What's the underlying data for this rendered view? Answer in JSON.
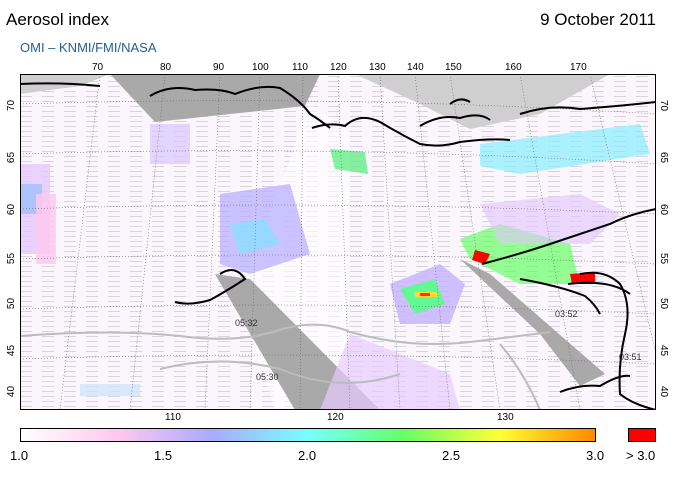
{
  "header": {
    "title": "Aerosol index",
    "date": "9 October 2011",
    "source": "OMI  –  KNMI/FMI/NASA"
  },
  "map": {
    "top_lon_labels": [
      "70",
      "80",
      "90",
      "100",
      "110",
      "120",
      "130",
      "140",
      "150",
      "160",
      "170"
    ],
    "bottom_lon_labels": [
      "110",
      "120",
      "130"
    ],
    "left_lat_labels": [
      "70",
      "65",
      "60",
      "55",
      "50",
      "45",
      "40"
    ],
    "right_lat_labels": [
      "70",
      "65",
      "60",
      "55",
      "50",
      "45",
      "40"
    ],
    "overpass_times": [
      "05:32",
      "05:30",
      "03:52",
      "03:51"
    ],
    "colors": {
      "land": "#ffffff",
      "no_data": "#aaaaaa",
      "coast": "#000000",
      "border": "#bbbbbb",
      "grid": "#555555",
      "high_ai": "#ff0000"
    }
  },
  "colorbar": {
    "labels": [
      "1.0",
      "1.5",
      "2.0",
      "2.5",
      "3.0"
    ],
    "over_label": "> 3.0",
    "stops": [
      "#ffffff",
      "#ffc8f0",
      "#aaaaff",
      "#77ffff",
      "#66ff66",
      "#ffff33",
      "#ff8800"
    ],
    "over_color": "#ff0000"
  }
}
